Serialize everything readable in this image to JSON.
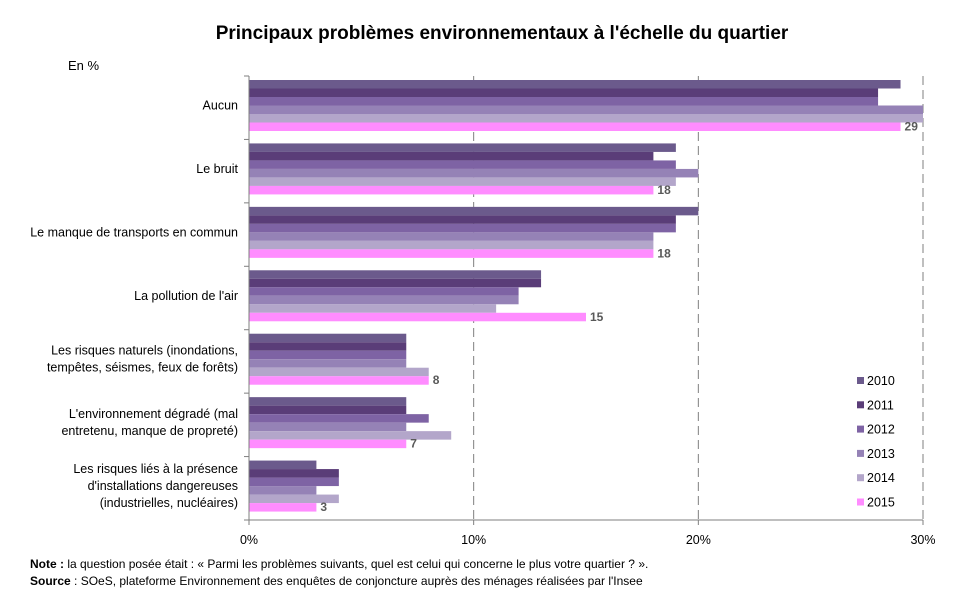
{
  "chart_data": {
    "type": "bar",
    "orientation": "horizontal",
    "title": "Principaux problèmes environnementaux à l'échelle du quartier",
    "unit_label": "En %",
    "categories": [
      [
        "Aucun"
      ],
      [
        "Le bruit"
      ],
      [
        "Le manque de transports en commun"
      ],
      [
        "La pollution de l'air"
      ],
      [
        "Les risques naturels (inondations,",
        "tempêtes, séismes, feux de forêts)"
      ],
      [
        "L'environnement dégradé (mal",
        "entretenu, manque de propreté)"
      ],
      [
        "Les risques liés à la présence",
        "d'installations dangereuses",
        "(industrielles, nucléaires)"
      ]
    ],
    "series": [
      {
        "name": "2010",
        "color": "#6b5a8c",
        "values": [
          29,
          19,
          20,
          13,
          7,
          7,
          3
        ]
      },
      {
        "name": "2011",
        "color": "#5a3d78",
        "values": [
          28,
          18,
          19,
          13,
          7,
          7,
          4
        ]
      },
      {
        "name": "2012",
        "color": "#7e63a4",
        "values": [
          28,
          19,
          19,
          12,
          7,
          8,
          4
        ]
      },
      {
        "name": "2013",
        "color": "#9582b6",
        "values": [
          30,
          20,
          18,
          12,
          7,
          7,
          3
        ]
      },
      {
        "name": "2014",
        "color": "#b3a6ca",
        "values": [
          30,
          19,
          18,
          11,
          8,
          9,
          4
        ]
      },
      {
        "name": "2015",
        "color": "#ff8cff",
        "values": [
          29,
          18,
          18,
          15,
          8,
          7,
          3
        ]
      }
    ],
    "data_labels_series": "2015",
    "xlim": [
      0,
      30
    ],
    "xticks": [
      {
        "value": 0,
        "label": "0%"
      },
      {
        "value": 10,
        "label": "10%"
      },
      {
        "value": 20,
        "label": "20%"
      },
      {
        "value": 30,
        "label": "30%"
      }
    ],
    "grid": "vertical-dashed",
    "legend_position": "bottom-right"
  },
  "footer": {
    "note_label": "Note :",
    "note_text": " la question posée était : « Parmi les problèmes suivants, quel est celui qui concerne le plus votre quartier ? ».",
    "source_label": "Source",
    "source_text": " : SOeS, plateforme Environnement des enquêtes de conjoncture auprès des ménages réalisées par l'Insee"
  }
}
